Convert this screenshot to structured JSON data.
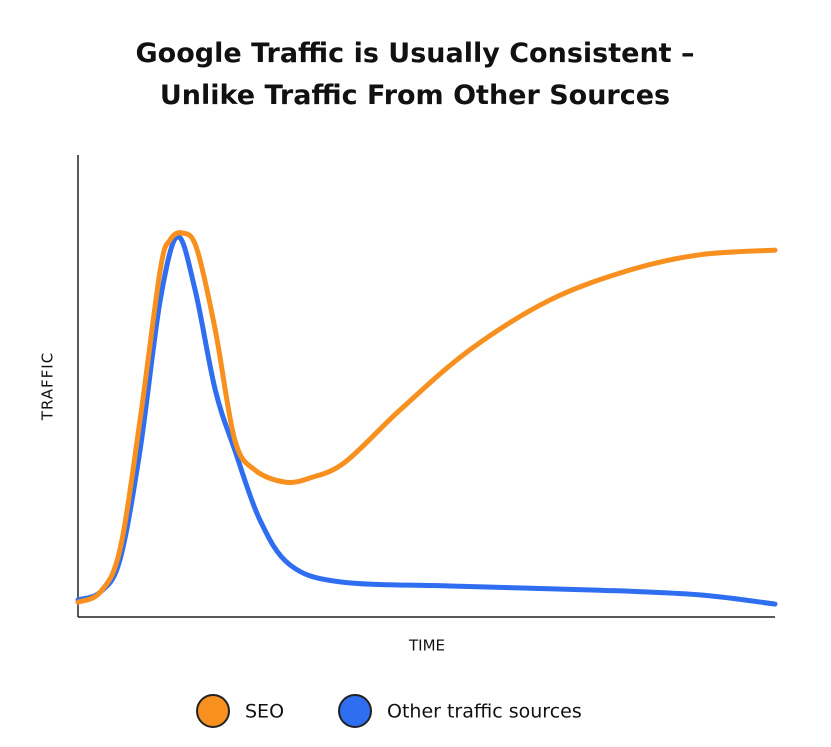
{
  "chart_data": {
    "type": "line",
    "title": [
      "Google Traffic is Usually Consistent –",
      "Unlike Traffic From Other Sources"
    ],
    "x_label": "TIME",
    "y_label": "TRAFFIC",
    "xlim": [
      0,
      100
    ],
    "ylim": [
      0,
      100
    ],
    "series": [
      {
        "name": "SEO",
        "color": "#f7901e",
        "x": [
          0,
          3.2,
          6.0,
          8.9,
          11.8,
          13.2,
          15.0,
          17.0,
          19.7,
          22.5,
          25.4,
          29.7,
          33.3,
          38.3,
          46.2,
          56.2,
          67.7,
          79.2,
          89.2,
          100
        ],
        "values": [
          3.2,
          5.4,
          14.5,
          42.6,
          75.1,
          81.6,
          83.1,
          79.9,
          62.1,
          38.3,
          31.8,
          29.2,
          30.1,
          33.5,
          44.8,
          57.8,
          68.6,
          75.1,
          78.4,
          79.4
        ]
      },
      {
        "name": "Other traffic sources",
        "color": "#2f6ef0",
        "x": [
          0,
          3.2,
          6.0,
          8.9,
          11.8,
          14.3,
          16.8,
          19.7,
          22.5,
          26.1,
          30.4,
          37.6,
          53.4,
          74.9,
          89.2,
          100
        ],
        "values": [
          3.7,
          5.4,
          12.3,
          36.1,
          68.6,
          82.3,
          70.8,
          49.1,
          36.1,
          21.0,
          11.3,
          7.6,
          6.7,
          5.8,
          4.8,
          2.8
        ]
      }
    ]
  }
}
